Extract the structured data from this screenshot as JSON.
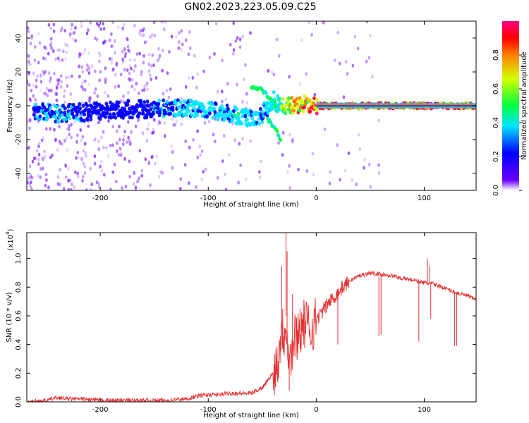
{
  "figure": {
    "title": "GN02.2023.223.05.09.C25"
  },
  "chart_data": [
    {
      "type": "heatmap",
      "name": "spectrogram",
      "xlabel": "Height of straight line (km)",
      "ylabel": "Frequency (Hz)",
      "xlim": [
        -268,
        148
      ],
      "ylim": [
        -50,
        50
      ],
      "xticks": [
        -200,
        -100,
        0,
        100
      ],
      "xtick_labels": [
        "-200",
        "-100",
        "0",
        "100"
      ],
      "yticks": [
        -40,
        -20,
        0,
        20,
        40
      ],
      "ytick_labels": [
        "-40",
        "-20",
        "0",
        "20",
        "40"
      ],
      "colorbar": {
        "label": "Normalized spectral amplitude",
        "range": [
          0.0,
          1.0
        ],
        "ticks": [
          0.0,
          0.2,
          0.4,
          0.6,
          0.8
        ],
        "tick_labels": [
          "0.0",
          "0.2",
          "0.4",
          "0.6",
          "0.8"
        ],
        "colormap": [
          "#ffffff",
          "#6a00ff",
          "#0000ff",
          "#00e5ff",
          "#00ff40",
          "#d4ff00",
          "#ff8000",
          "#ff0000",
          "#ff0080"
        ]
      },
      "signal_track": {
        "x": [
          -262,
          -240,
          -220,
          -200,
          -175,
          -150,
          -125,
          -100,
          -85,
          -70,
          -60,
          -50,
          -45,
          -40,
          -35,
          -30,
          -20,
          -10,
          0,
          50,
          100,
          148
        ],
        "frequency_hz": [
          -3,
          -5,
          -4,
          -3,
          -2,
          -2,
          -1,
          -3,
          -4,
          -6,
          -8,
          -5,
          0,
          3,
          1,
          -1,
          1,
          1,
          0,
          0,
          0,
          0
        ],
        "amplitude": [
          0.2,
          0.25,
          0.2,
          0.15,
          0.15,
          0.2,
          0.25,
          0.3,
          0.3,
          0.35,
          0.3,
          0.25,
          0.3,
          0.35,
          0.4,
          0.5,
          0.7,
          0.8,
          0.9,
          0.9,
          0.9,
          0.9
        ]
      },
      "branch_tracks": [
        {
          "x": [
            -60,
            -52,
            -45,
            -38
          ],
          "frequency_hz": [
            11,
            10,
            6,
            2
          ]
        },
        {
          "x": [
            -45,
            -40,
            -36,
            -33
          ],
          "frequency_hz": [
            -8,
            -12,
            -16,
            -20
          ]
        }
      ]
    },
    {
      "type": "line",
      "name": "snr",
      "xlabel": "Height of straight line (km)",
      "ylabel": "SNR (10 * v/v)",
      "multiplier_label": "(x10",
      "multiplier_exp": "4",
      "multiplier_close": ")",
      "xlim": [
        -268,
        148
      ],
      "ylim": [
        0.0,
        1.18
      ],
      "xticks": [
        -200,
        -100,
        0,
        100
      ],
      "xtick_labels": [
        "-200",
        "-100",
        "0",
        "100"
      ],
      "yticks": [
        0.0,
        0.2,
        0.4,
        0.6,
        0.8,
        1.0
      ],
      "ytick_labels": [
        "0.0",
        "0.2",
        "0.4",
        "0.6",
        "0.8",
        "1.0"
      ],
      "color": "#e53030",
      "series": [
        {
          "x": [
            -268,
            -250,
            -240,
            -230,
            -220,
            -200,
            -180,
            -160,
            -140,
            -120,
            -110,
            -100,
            -90,
            -80,
            -70,
            -60,
            -55,
            -50,
            -45,
            -40,
            -35,
            -32,
            -30,
            -28,
            -26,
            -24,
            -22,
            -20,
            -15,
            -10,
            -5,
            0,
            5,
            10,
            15,
            20,
            25,
            30,
            40,
            50,
            60,
            70,
            80,
            90,
            100,
            110,
            120,
            130,
            140,
            148
          ],
          "y": [
            0.0,
            0.01,
            0.03,
            0.02,
            0.02,
            0.01,
            0.01,
            0.01,
            0.01,
            0.02,
            0.04,
            0.05,
            0.05,
            0.06,
            0.06,
            0.06,
            0.08,
            0.1,
            0.15,
            0.2,
            0.3,
            0.55,
            0.45,
            0.6,
            0.35,
            0.3,
            0.35,
            0.45,
            0.5,
            0.55,
            0.5,
            0.58,
            0.62,
            0.68,
            0.72,
            0.76,
            0.8,
            0.84,
            0.88,
            0.9,
            0.89,
            0.88,
            0.86,
            0.85,
            0.83,
            0.82,
            0.79,
            0.76,
            0.74,
            0.71
          ]
        }
      ],
      "spikes": [
        {
          "x": -32,
          "y": 0.95
        },
        {
          "x": -28,
          "y": 1.18
        },
        {
          "x": -27,
          "y": 1.05
        },
        {
          "x": -25,
          "y": 0.08
        },
        {
          "x": -22,
          "y": 0.75
        },
        {
          "x": -15,
          "y": 0.65
        },
        {
          "x": 20,
          "y": 0.4
        },
        {
          "x": 58,
          "y": 0.46
        },
        {
          "x": 60,
          "y": 0.47
        },
        {
          "x": 95,
          "y": 0.42
        },
        {
          "x": 103,
          "y": 1.0
        },
        {
          "x": 105,
          "y": 0.95
        },
        {
          "x": 106,
          "y": 0.58
        },
        {
          "x": 128,
          "y": 0.39
        },
        {
          "x": 130,
          "y": 0.39
        }
      ]
    }
  ]
}
